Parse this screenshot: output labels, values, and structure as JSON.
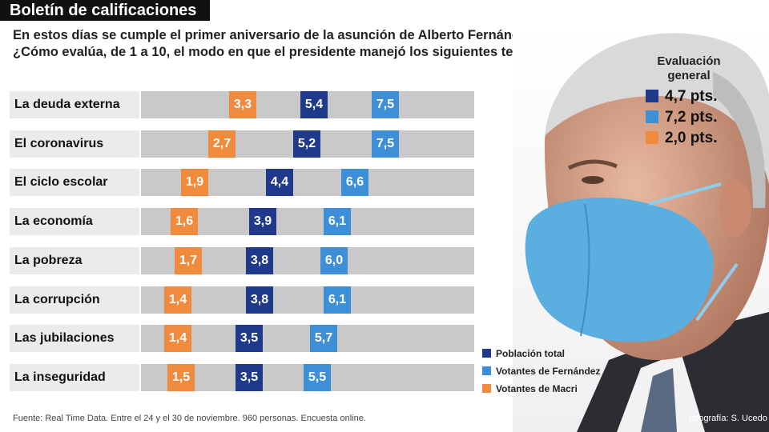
{
  "header": {
    "title": "Boletín de calificaciones",
    "subtitle_line1": "En estos días se cumple el primer aniversario de la asunción de Alberto Fernández.",
    "subtitle_line2": "¿Cómo evalúa, de 1 a 10, el modo en que el presidente manejó los siguientes temas?"
  },
  "colors": {
    "poblacion": "#1f3a8a",
    "fernandez": "#3d8fd8",
    "macri": "#f08a3c",
    "track": "#c9c9c9",
    "label_bg": "#ebebeb"
  },
  "evaluacion": {
    "title_line1": "Evaluación",
    "title_line2": "general",
    "items": [
      {
        "text": "4,7 pts.",
        "color": "#1f3a8a"
      },
      {
        "text": "7,2 pts.",
        "color": "#3d8fd8"
      },
      {
        "text": "2,0 pts.",
        "color": "#f08a3c"
      }
    ]
  },
  "legend": [
    {
      "label": "Población total",
      "color": "#1f3a8a"
    },
    {
      "label": "Votantes de Fernández",
      "color": "#3d8fd8"
    },
    {
      "label": "Votantes de Macri",
      "color": "#f08a3c"
    }
  ],
  "chart_data": {
    "type": "scatter",
    "scale": [
      1,
      10
    ],
    "categories": [
      "La deuda externa",
      "El coronavirus",
      "El ciclo escolar",
      "La economía",
      "La pobreza",
      "La corrupción",
      "Las jubilaciones",
      "La inseguridad"
    ],
    "series": [
      {
        "name": "Población total",
        "values": [
          5.4,
          5.2,
          4.4,
          3.9,
          3.8,
          3.8,
          3.5,
          3.5
        ],
        "labels": [
          "5,4",
          "5,2",
          "4,4",
          "3,9",
          "3,8",
          "3,8",
          "3,5",
          "3,5"
        ]
      },
      {
        "name": "Votantes de Fernández",
        "values": [
          7.5,
          7.5,
          6.6,
          6.1,
          6.0,
          6.1,
          5.7,
          5.5
        ],
        "labels": [
          "7,5",
          "7,5",
          "6,6",
          "6,1",
          "6,0",
          "6,1",
          "5,7",
          "5,5"
        ]
      },
      {
        "name": "Votantes de Macri",
        "values": [
          3.3,
          2.7,
          1.9,
          1.6,
          1.7,
          1.4,
          1.4,
          1.5
        ],
        "labels": [
          "3,3",
          "2,7",
          "1,9",
          "1,6",
          "1,7",
          "1,4",
          "1,4",
          "1,5"
        ]
      }
    ]
  },
  "footer": {
    "source": "Fuente: Real Time Data. Entre el 24 y el 30 de noviembre. 960 personas. Encuesta online.",
    "credit": "Infografía: S. Ucedo"
  }
}
